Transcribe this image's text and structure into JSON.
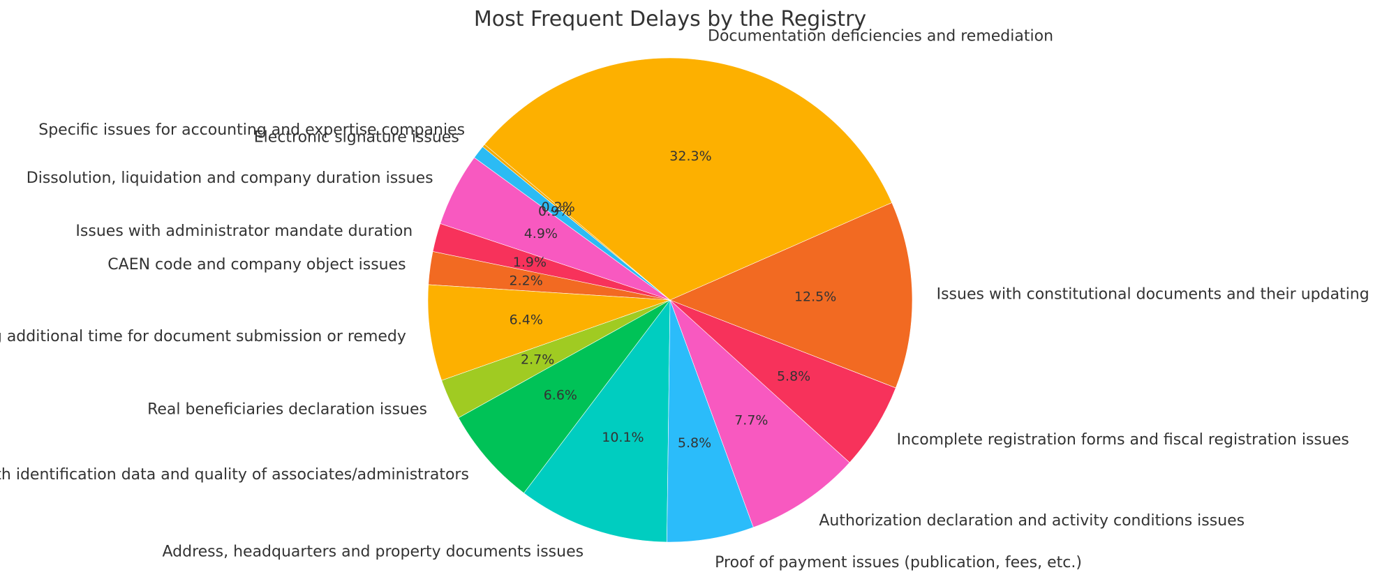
{
  "chart_data": {
    "type": "pie",
    "title": "Most Frequent Delays by the Registry",
    "start_angle": 140,
    "direction": "counterclockwise",
    "slices": [
      {
        "label": "Specific issues for accounting and expertise companies",
        "percent": 0.2,
        "pct_text": "0.2%",
        "color": "#f4aa00"
      },
      {
        "label": "Electronic signature issues",
        "percent": 0.9,
        "pct_text": "0.9%",
        "color": "#2bbbf4"
      },
      {
        "label": "Dissolution, liquidation and company duration issues",
        "percent": 4.9,
        "pct_text": "4.9%",
        "color": "#f859c0"
      },
      {
        "label": "Issues with administrator mandate duration",
        "percent": 1.9,
        "pct_text": "1.9%",
        "color": "#f7325b"
      },
      {
        "label": "CAEN code and company object issues",
        "percent": 2.2,
        "pct_text": "2.2%",
        "color": "#f26a22"
      },
      {
        "label": "Granting additional time for document submission or remedy",
        "percent": 6.4,
        "pct_text": "6.4%",
        "color": "#fdb000"
      },
      {
        "label": "Real beneficiaries declaration issues",
        "percent": 2.7,
        "pct_text": "2.7%",
        "color": "#a0cb22"
      },
      {
        "label": "Issues with identification data and quality of associates/administrators",
        "percent": 6.6,
        "pct_text": "6.6%",
        "color": "#00c257"
      },
      {
        "label": "Address, headquarters and property documents issues",
        "percent": 10.1,
        "pct_text": "10.1%",
        "color": "#00cdc0"
      },
      {
        "label": "Proof of payment issues (publication, fees, etc.)",
        "percent": 5.8,
        "pct_text": "5.8%",
        "color": "#2bbcfa"
      },
      {
        "label": "Authorization declaration and activity conditions issues",
        "percent": 7.7,
        "pct_text": "7.7%",
        "color": "#f859c0"
      },
      {
        "label": "Incomplete registration forms and fiscal registration issues",
        "percent": 5.8,
        "pct_text": "5.8%",
        "color": "#f7325b"
      },
      {
        "label": "Issues with constitutional documents and their updating",
        "percent": 12.5,
        "pct_text": "12.5%",
        "color": "#f26a22"
      },
      {
        "label": "Documentation deficiencies and remediation",
        "percent": 32.3,
        "pct_text": "32.3%",
        "color": "#fdb000"
      }
    ]
  }
}
